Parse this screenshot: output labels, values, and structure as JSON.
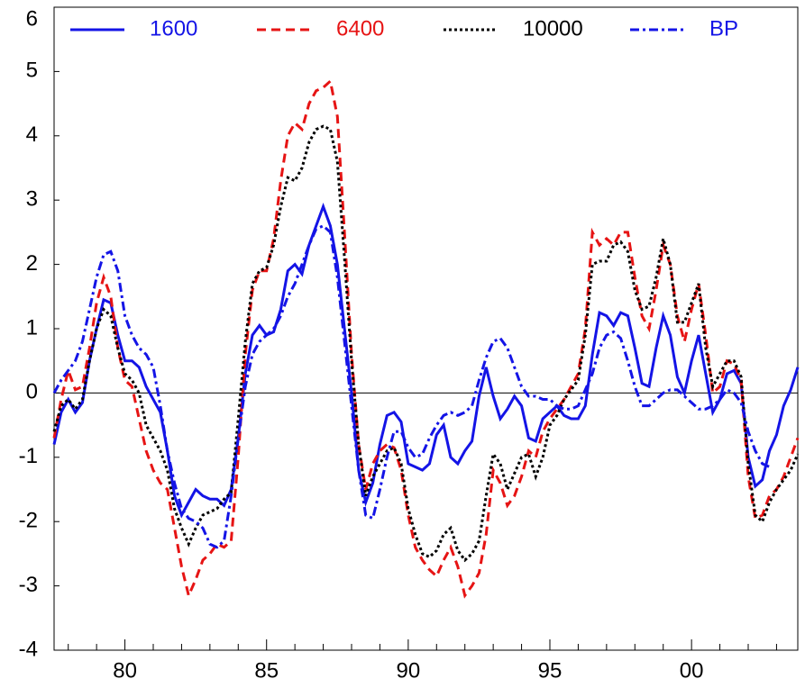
{
  "chart_data": {
    "type": "line",
    "x": [
      1977.5,
      1977.75,
      1978,
      1978.25,
      1978.5,
      1978.75,
      1979,
      1979.25,
      1979.5,
      1979.75,
      1980,
      1980.25,
      1980.5,
      1980.75,
      1981,
      1981.25,
      1981.5,
      1981.75,
      1982,
      1982.25,
      1982.5,
      1982.75,
      1983,
      1983.25,
      1983.5,
      1983.75,
      1984,
      1984.25,
      1984.5,
      1984.75,
      1985,
      1985.25,
      1985.5,
      1985.75,
      1986,
      1986.25,
      1986.5,
      1986.75,
      1987,
      1987.25,
      1987.5,
      1987.75,
      1988,
      1988.25,
      1988.5,
      1988.75,
      1989,
      1989.25,
      1989.5,
      1989.75,
      1990,
      1990.25,
      1990.5,
      1990.75,
      1991,
      1991.25,
      1991.5,
      1991.75,
      1992,
      1992.25,
      1992.5,
      1992.75,
      1993,
      1993.25,
      1993.5,
      1993.75,
      1994,
      1994.25,
      1994.5,
      1994.75,
      1995,
      1995.25,
      1995.5,
      1995.75,
      1996,
      1996.25,
      1996.5,
      1996.75,
      1997,
      1997.25,
      1997.5,
      1997.75,
      1998,
      1998.25,
      1998.5,
      1998.75,
      1999,
      1999.25,
      1999.5,
      1999.75,
      2000,
      2000.25,
      2000.5,
      2000.75,
      2001,
      2001.25,
      2001.5,
      2001.75,
      2002,
      2002.25,
      2002.5,
      2002.75,
      2003,
      2003.25,
      2003.5,
      2003.75
    ],
    "series": [
      {
        "name": "1600",
        "color": "#1414e6",
        "dash": "solid",
        "values": [
          -0.8,
          -0.3,
          -0.1,
          -0.3,
          -0.15,
          0.5,
          1.0,
          1.45,
          1.4,
          0.9,
          0.5,
          0.5,
          0.4,
          0.1,
          -0.1,
          -0.3,
          -0.9,
          -1.6,
          -1.9,
          -1.7,
          -1.5,
          -1.6,
          -1.65,
          -1.65,
          -1.75,
          -1.5,
          -0.7,
          0.3,
          0.9,
          1.05,
          0.9,
          0.95,
          1.3,
          1.9,
          2.0,
          1.85,
          2.3,
          2.6,
          2.9,
          2.6,
          2.0,
          1.0,
          0.0,
          -1.2,
          -1.7,
          -1.4,
          -0.8,
          -0.35,
          -0.3,
          -0.45,
          -1.1,
          -1.15,
          -1.2,
          -1.1,
          -0.65,
          -0.5,
          -1.0,
          -1.1,
          -0.9,
          -0.75,
          -0.05,
          0.4,
          -0.05,
          -0.4,
          -0.25,
          -0.05,
          -0.2,
          -0.7,
          -0.75,
          -0.4,
          -0.3,
          -0.2,
          -0.35,
          -0.4,
          -0.4,
          -0.2,
          0.6,
          1.25,
          1.2,
          1.05,
          1.25,
          1.2,
          0.7,
          0.15,
          0.1,
          0.7,
          1.2,
          0.9,
          0.25,
          0.0,
          0.5,
          0.9,
          0.3,
          -0.3,
          -0.1,
          0.3,
          0.35,
          0.15,
          -1.0,
          -1.45,
          -1.35,
          -0.9,
          -0.65,
          -0.2,
          0.05,
          0.4
        ]
      },
      {
        "name": "6400",
        "color": "#e61414",
        "dash": "dashed",
        "values": [
          -0.7,
          -0.1,
          0.35,
          0.05,
          0.1,
          0.7,
          1.4,
          1.8,
          1.5,
          0.7,
          0.2,
          0.1,
          -0.4,
          -0.9,
          -1.2,
          -1.4,
          -1.5,
          -2.1,
          -2.7,
          -3.15,
          -2.9,
          -2.6,
          -2.5,
          -2.35,
          -2.4,
          -2.3,
          -1.0,
          0.6,
          1.6,
          1.9,
          1.9,
          2.4,
          3.3,
          4.0,
          4.2,
          4.1,
          4.5,
          4.7,
          4.75,
          4.85,
          4.3,
          2.5,
          0.6,
          -0.8,
          -1.5,
          -1.1,
          -0.9,
          -0.8,
          -0.85,
          -1.2,
          -1.9,
          -2.4,
          -2.6,
          -2.75,
          -2.85,
          -2.6,
          -2.4,
          -2.7,
          -3.15,
          -3.0,
          -2.8,
          -2.2,
          -1.2,
          -1.4,
          -1.75,
          -1.6,
          -1.3,
          -0.9,
          -1.0,
          -0.6,
          -0.4,
          -0.25,
          -0.1,
          0.1,
          0.3,
          1.0,
          2.5,
          2.3,
          2.4,
          2.3,
          2.5,
          2.5,
          1.8,
          1.2,
          1.0,
          1.6,
          2.3,
          2.0,
          1.2,
          0.8,
          1.3,
          1.7,
          0.9,
          0.0,
          0.1,
          0.5,
          0.45,
          0.2,
          -1.3,
          -1.95,
          -1.9,
          -1.6,
          -1.5,
          -1.3,
          -1.0,
          -0.7
        ]
      },
      {
        "name": "10000",
        "color": "#000000",
        "dash": "dotted",
        "values": [
          -0.6,
          -0.2,
          -0.1,
          -0.25,
          -0.1,
          0.5,
          1.0,
          1.3,
          1.2,
          0.7,
          0.3,
          0.2,
          0.0,
          -0.5,
          -0.7,
          -0.9,
          -1.2,
          -1.8,
          -2.1,
          -2.35,
          -2.1,
          -1.9,
          -1.85,
          -1.8,
          -1.65,
          -1.55,
          -0.4,
          0.8,
          1.7,
          1.9,
          1.95,
          2.3,
          2.9,
          3.35,
          3.3,
          3.5,
          3.9,
          4.1,
          4.15,
          4.1,
          3.6,
          2.1,
          0.5,
          -0.8,
          -1.6,
          -1.3,
          -1.1,
          -0.9,
          -0.85,
          -1.1,
          -1.8,
          -2.2,
          -2.5,
          -2.55,
          -2.45,
          -2.2,
          -2.1,
          -2.45,
          -2.6,
          -2.5,
          -2.3,
          -1.6,
          -0.95,
          -1.1,
          -1.5,
          -1.25,
          -1.0,
          -0.95,
          -1.3,
          -1.0,
          -0.5,
          -0.35,
          -0.1,
          0.05,
          0.2,
          0.9,
          2.0,
          2.05,
          2.05,
          2.3,
          2.35,
          2.2,
          1.6,
          1.3,
          1.35,
          1.8,
          2.4,
          2.0,
          1.1,
          1.1,
          1.4,
          1.7,
          0.7,
          0.1,
          0.3,
          0.5,
          0.5,
          0.25,
          -1.1,
          -1.9,
          -2.0,
          -1.7,
          -1.5,
          -1.35,
          -1.2,
          -0.95
        ]
      },
      {
        "name": "BP",
        "color": "#1414e6",
        "dash": "dashdot",
        "values": [
          0.0,
          0.2,
          0.35,
          0.5,
          0.8,
          1.3,
          1.8,
          2.15,
          2.2,
          1.9,
          1.2,
          0.9,
          0.7,
          0.6,
          0.4,
          -0.2,
          -0.9,
          -1.4,
          -1.8,
          -1.95,
          -2.0,
          -2.1,
          -2.35,
          -2.4,
          -2.3,
          -1.6,
          -0.7,
          0.1,
          0.6,
          0.8,
          0.9,
          1.0,
          1.2,
          1.5,
          1.7,
          2.0,
          2.3,
          2.55,
          2.6,
          2.5,
          1.8,
          0.8,
          -0.2,
          -1.2,
          -1.9,
          -1.95,
          -1.5,
          -1.0,
          -0.6,
          -0.6,
          -0.85,
          -1.0,
          -0.95,
          -0.7,
          -0.5,
          -0.35,
          -0.3,
          -0.35,
          -0.3,
          -0.2,
          0.2,
          0.55,
          0.8,
          0.85,
          0.7,
          0.4,
          0.1,
          -0.05,
          -0.05,
          -0.1,
          -0.1,
          -0.2,
          -0.25,
          -0.25,
          -0.2,
          0.05,
          0.3,
          0.7,
          0.9,
          0.95,
          0.85,
          0.5,
          0.1,
          -0.2,
          -0.2,
          -0.1,
          0.0,
          0.05,
          0.05,
          -0.05,
          -0.15,
          -0.25,
          -0.25,
          -0.2,
          -0.1,
          0.05,
          0.0,
          -0.15,
          -0.6,
          -0.9,
          -1.1,
          -1.15,
          null,
          null,
          null,
          null
        ]
      }
    ],
    "xlim": [
      1977.5,
      2003.75
    ],
    "xticks": [
      {
        "value": 1980,
        "label": "80"
      },
      {
        "value": 1985,
        "label": "85"
      },
      {
        "value": 1990,
        "label": "90"
      },
      {
        "value": 1995,
        "label": "95"
      },
      {
        "value": 2000,
        "label": "00"
      }
    ],
    "xminorticks": [
      1978,
      1979,
      1981,
      1982,
      1983,
      1984,
      1986,
      1987,
      1988,
      1989,
      1991,
      1992,
      1993,
      1994,
      1996,
      1997,
      1998,
      1999,
      2001,
      2002,
      2003
    ],
    "ylim": [
      -4,
      6
    ],
    "yticks": [
      -4,
      -3,
      -2,
      -1,
      0,
      1,
      2,
      3,
      4,
      5,
      6
    ],
    "hlines": [
      0
    ],
    "legend": "top"
  }
}
